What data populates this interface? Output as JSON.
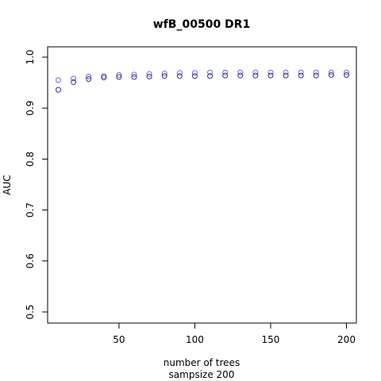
{
  "chart_data": {
    "type": "scatter",
    "title": "wfB_00500 DR1",
    "xlabel": "number of trees",
    "xlabel2": "sampsize 200",
    "ylabel": "AUC",
    "xlim": [
      10,
      200
    ],
    "ylim": [
      0.5,
      1.0
    ],
    "xticks": [
      50,
      100,
      150,
      200
    ],
    "yticks": [
      0.5,
      0.6,
      0.7,
      0.8,
      0.9,
      1.0
    ],
    "grid": false,
    "legend": "none",
    "marker": "open-circle",
    "series": [
      {
        "color": "#6b6bd6",
        "x": [
          10,
          20,
          30,
          40,
          50,
          60,
          70,
          80,
          90,
          100,
          110,
          120,
          130,
          140,
          150,
          160,
          170,
          180,
          190,
          200
        ],
        "y": [
          0.955,
          0.958,
          0.962,
          0.963,
          0.965,
          0.966,
          0.967,
          0.968,
          0.969,
          0.969,
          0.97,
          0.97,
          0.97,
          0.97,
          0.97,
          0.97,
          0.97,
          0.97,
          0.97,
          0.97
        ]
      },
      {
        "color": "#333380",
        "x": [
          10,
          20,
          30,
          40,
          50,
          60,
          70,
          80,
          90,
          100,
          110,
          120,
          130,
          140,
          150,
          160,
          170,
          180,
          190,
          200
        ],
        "y": [
          0.936,
          0.951,
          0.957,
          0.96,
          0.961,
          0.961,
          0.962,
          0.963,
          0.963,
          0.963,
          0.963,
          0.964,
          0.964,
          0.964,
          0.964,
          0.964,
          0.964,
          0.964,
          0.965,
          0.965
        ]
      }
    ]
  }
}
